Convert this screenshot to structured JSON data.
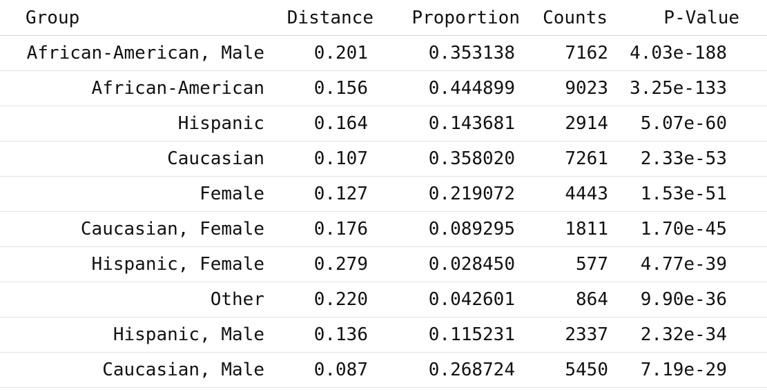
{
  "table": {
    "headers": {
      "group": "Group",
      "distance": "Distance",
      "proportion": "Proportion",
      "counts": "Counts",
      "pvalue": "P-Value"
    },
    "rows": [
      {
        "group": "African-American, Male",
        "distance": "0.201",
        "proportion": "0.353138",
        "counts": "7162",
        "pvalue": "4.03e-188"
      },
      {
        "group": "African-American",
        "distance": "0.156",
        "proportion": "0.444899",
        "counts": "9023",
        "pvalue": "3.25e-133"
      },
      {
        "group": "Hispanic",
        "distance": "0.164",
        "proportion": "0.143681",
        "counts": "2914",
        "pvalue": "5.07e-60"
      },
      {
        "group": "Caucasian",
        "distance": "0.107",
        "proportion": "0.358020",
        "counts": "7261",
        "pvalue": "2.33e-53"
      },
      {
        "group": "Female",
        "distance": "0.127",
        "proportion": "0.219072",
        "counts": "4443",
        "pvalue": "1.53e-51"
      },
      {
        "group": "Caucasian, Female",
        "distance": "0.176",
        "proportion": "0.089295",
        "counts": "1811",
        "pvalue": "1.70e-45"
      },
      {
        "group": "Hispanic, Female",
        "distance": "0.279",
        "proportion": "0.028450",
        "counts": "577",
        "pvalue": "4.77e-39"
      },
      {
        "group": "Other",
        "distance": "0.220",
        "proportion": "0.042601",
        "counts": "864",
        "pvalue": "9.90e-36"
      },
      {
        "group": "Hispanic, Male",
        "distance": "0.136",
        "proportion": "0.115231",
        "counts": "2337",
        "pvalue": "2.32e-34"
      },
      {
        "group": "Caucasian, Male",
        "distance": "0.087",
        "proportion": "0.268724",
        "counts": "5450",
        "pvalue": "7.19e-29"
      }
    ]
  }
}
